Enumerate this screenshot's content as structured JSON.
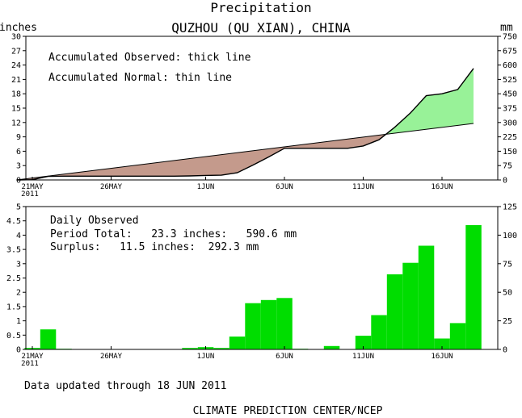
{
  "header": {
    "title": "Precipitation",
    "subtitle": "QUZHOU (QU XIAN), CHINA"
  },
  "chart_data": [
    {
      "type": "area",
      "panel": "accumulated",
      "left_unit": "inches",
      "right_unit": "mm",
      "ylim": [
        0,
        30
      ],
      "y_ticks": [
        0,
        3,
        6,
        9,
        12,
        15,
        18,
        21,
        24,
        27,
        30
      ],
      "right_ticks": [
        "0",
        "75",
        "150",
        "225",
        "300",
        "375",
        "450",
        "525",
        "600",
        "675",
        "750"
      ],
      "x_ticks": [
        {
          "day": 0,
          "label": "21MAY",
          "sub": "2011"
        },
        {
          "day": 5,
          "label": "26MAY",
          "sub": ""
        },
        {
          "day": 11,
          "label": "1JUN",
          "sub": ""
        },
        {
          "day": 16,
          "label": "6JUN",
          "sub": ""
        },
        {
          "day": 21,
          "label": "11JUN",
          "sub": ""
        },
        {
          "day": 26,
          "label": "16JUN",
          "sub": ""
        }
      ],
      "annotations": [
        "Accumulated Observed: thick line",
        "Accumulated Normal: thin line"
      ],
      "observed": {
        "x": [
          -1,
          0,
          1,
          2,
          3,
          4,
          5,
          6,
          7,
          8,
          9,
          10,
          11,
          12,
          13,
          14,
          15,
          16,
          17,
          18,
          19,
          20,
          21,
          22,
          23,
          24,
          25,
          26,
          27,
          28
        ],
        "y": [
          0,
          0.05,
          0.75,
          0.8,
          0.8,
          0.8,
          0.8,
          0.8,
          0.8,
          0.8,
          0.8,
          0.85,
          0.95,
          1.0,
          1.5,
          3.1,
          4.8,
          6.6,
          6.6,
          6.6,
          6.6,
          6.6,
          7.1,
          8.4,
          11.0,
          14.0,
          17.6,
          18.0,
          18.9,
          23.3
        ]
      },
      "normal": {
        "x": [
          -1,
          28
        ],
        "y": [
          0,
          11.8
        ]
      },
      "colors": {
        "surplus": "#98f298",
        "deficit": "#c49a8c"
      }
    },
    {
      "type": "bar",
      "panel": "daily",
      "left_unit": "",
      "right_unit": "",
      "ylim": [
        0,
        5
      ],
      "y_ticks": [
        "0",
        "0.5",
        "1",
        "1.5",
        "2",
        "2.5",
        "3",
        "3.5",
        "4",
        "4.5",
        "5"
      ],
      "right_ticks": [
        "0",
        "25",
        "50",
        "75",
        "100",
        "125"
      ],
      "x_ticks": [
        {
          "day": 0,
          "label": "21MAY",
          "sub": "2011"
        },
        {
          "day": 5,
          "label": "26MAY",
          "sub": ""
        },
        {
          "day": 11,
          "label": "1JUN",
          "sub": ""
        },
        {
          "day": 16,
          "label": "6JUN",
          "sub": ""
        },
        {
          "day": 21,
          "label": "11JUN",
          "sub": ""
        },
        {
          "day": 26,
          "label": "16JUN",
          "sub": ""
        }
      ],
      "x": [
        0,
        1,
        2,
        10,
        11,
        12,
        13,
        14,
        15,
        16,
        17,
        19,
        21,
        22,
        23,
        24,
        25,
        26,
        27,
        28
      ],
      "values": [
        0.05,
        0.7,
        0.02,
        0.05,
        0.08,
        0.05,
        0.45,
        1.62,
        1.73,
        1.8,
        0.02,
        0.12,
        0.48,
        1.2,
        2.63,
        3.03,
        3.63,
        0.38,
        0.92,
        4.35
      ],
      "bar_color": "#00dd00",
      "annotations": {
        "heading": "Daily Observed",
        "period_total": "Period Total:   23.3 inches:   590.6 mm",
        "surplus": "Surplus:   11.5 inches:  292.3 mm"
      }
    }
  ],
  "footer": {
    "updated": "Data updated through 18 JUN 2011",
    "source": "CLIMATE PREDICTION CENTER/NCEP"
  }
}
